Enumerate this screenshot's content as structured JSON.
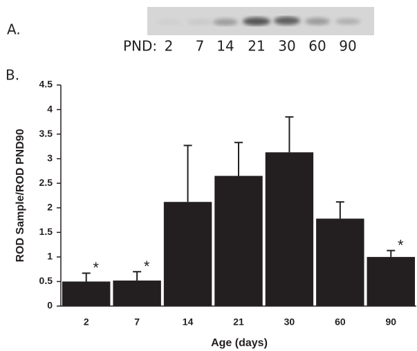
{
  "panel_a": {
    "label": "A.",
    "lane_prefix": "PND:",
    "lanes": [
      "2",
      "7",
      "14",
      "21",
      "30",
      "60",
      "90"
    ]
  },
  "panel_b": {
    "label": "B."
  },
  "chart_data": {
    "type": "bar",
    "x_label": "Age (days)",
    "y_label": "ROD Sample/ROD PND90",
    "categories": [
      "2",
      "7",
      "14",
      "21",
      "30",
      "60",
      "90"
    ],
    "values": [
      0.5,
      0.52,
      2.12,
      2.65,
      3.13,
      1.78,
      1.0
    ],
    "errors": [
      0.17,
      0.18,
      1.15,
      0.68,
      0.72,
      0.34,
      0.13
    ],
    "markers": [
      "*",
      "*",
      null,
      null,
      null,
      null,
      "*"
    ],
    "color": "#231f20",
    "ylim": [
      0,
      4.5
    ],
    "yticks": [
      0,
      0.5,
      1,
      1.5,
      2,
      2.5,
      3,
      3.5,
      4,
      4.5
    ]
  }
}
